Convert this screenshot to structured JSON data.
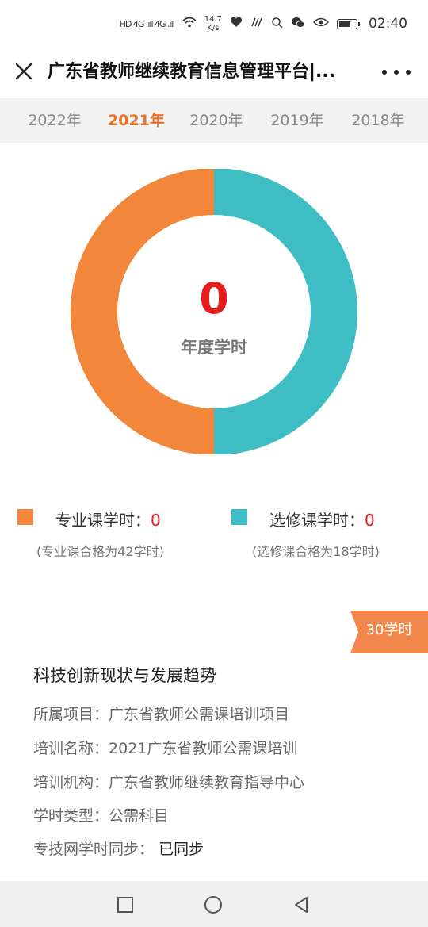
{
  "status": {
    "signal": "HD 4G .ıll 4G .ıll",
    "speed_value": "14.7",
    "speed_unit": "K/s",
    "time": "02:40"
  },
  "header": {
    "title": "广东省教师继续教育信息管理平台|..."
  },
  "years": [
    "2022年",
    "2021年",
    "2020年",
    "2019年",
    "2018年"
  ],
  "selected_year": "2021年",
  "summary": {
    "total": "0",
    "total_label": "年度学时"
  },
  "legend": {
    "professional": {
      "label": "专业课学时：",
      "value": "0",
      "note": "(专业课合格为42学时)",
      "color": "#f2873b"
    },
    "elective": {
      "label": "选修课学时：",
      "value": "0",
      "note": "(选修课合格为18学时)",
      "color": "#3fbdc4"
    }
  },
  "donut": {
    "professional_share": 0.5,
    "elective_share": 0.5
  },
  "course": {
    "badge": "30学时",
    "title": "科技创新现状与发展趋势",
    "rows": [
      {
        "label": "所属项目：",
        "value": "广东省教师公需课培训项目"
      },
      {
        "label": "培训名称：",
        "value": "2021广东省教师公需课培训"
      },
      {
        "label": "培训机构：",
        "value": "广东省教师继续教育指导中心"
      },
      {
        "label": "学时类型：",
        "value": "公需科目"
      },
      {
        "label": "专技网学时同步：",
        "value": "已同步"
      }
    ]
  },
  "colors": {
    "accent": "#e8722a",
    "red": "#e51d1d"
  }
}
